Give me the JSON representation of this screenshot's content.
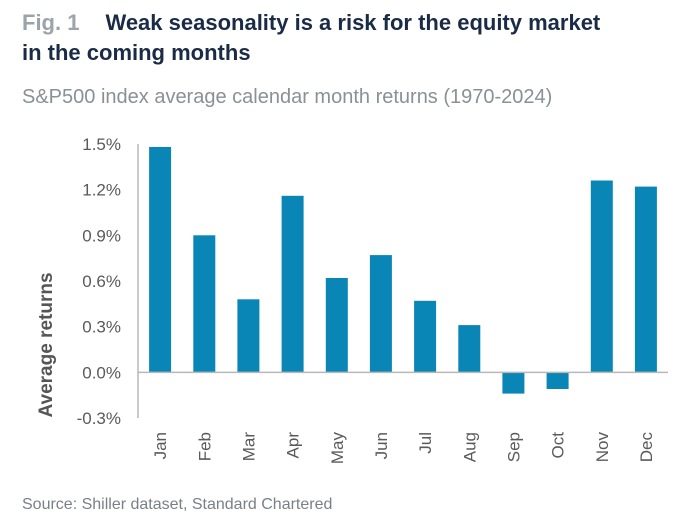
{
  "header": {
    "fig_label": "Fig. 1",
    "title_line1": "Weak seasonality is a risk for the equity market",
    "title_line2": "in the coming months",
    "subtitle": "S&P500 index average calendar month returns (1970-2024)"
  },
  "footer": {
    "source": "Source: Shiller dataset, Standard Chartered"
  },
  "colors": {
    "bar": "#0a86b6",
    "axis": "#b8b8b8",
    "tick_text": "#5a5a5a",
    "ylabel_text": "#555555"
  },
  "chart_data": {
    "type": "bar",
    "title": "S&P500 index average calendar month returns (1970-2024)",
    "xlabel": "",
    "ylabel": "Average returns",
    "categories": [
      "Jan",
      "Feb",
      "Mar",
      "Apr",
      "May",
      "Jun",
      "Jul",
      "Aug",
      "Sep",
      "Oct",
      "Nov",
      "Dec"
    ],
    "values": [
      1.48,
      0.9,
      0.48,
      1.16,
      0.62,
      0.77,
      0.47,
      0.31,
      -0.14,
      -0.11,
      1.26,
      1.22
    ],
    "ylim": [
      -0.3,
      1.5
    ],
    "yticks": [
      1.5,
      1.2,
      0.9,
      0.6,
      0.3,
      0.0,
      -0.3
    ],
    "ytick_labels": [
      "1.5%",
      "1.2%",
      "0.9%",
      "0.6%",
      "0.3%",
      "0.0%",
      "-0.3%"
    ],
    "grid": false,
    "legend": "none"
  }
}
